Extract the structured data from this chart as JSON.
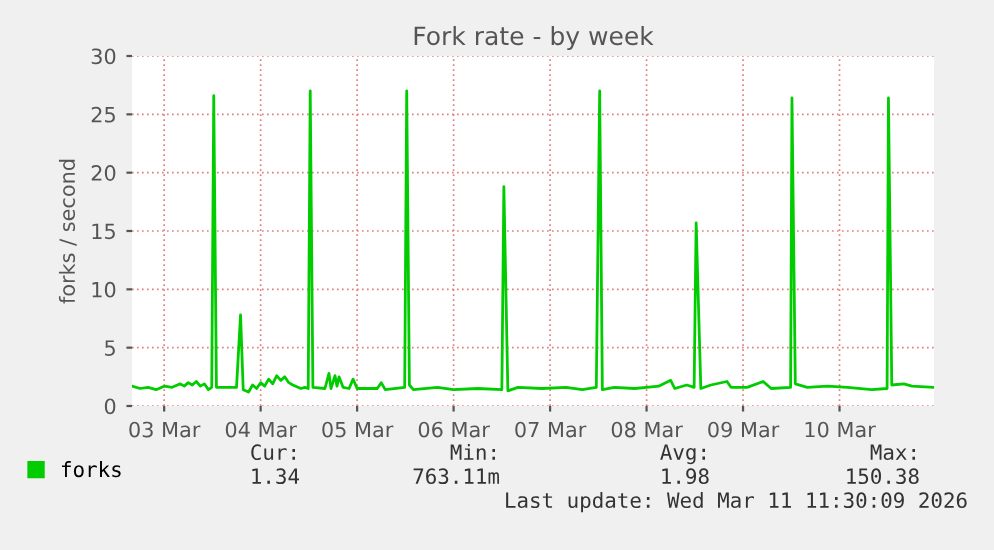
{
  "chart_data": {
    "type": "line",
    "title": "Fork rate - by week",
    "ylabel": "forks / second",
    "xlim": [
      "2026-03-03T04:00",
      "2026-03-11T11:30"
    ],
    "xticks": [
      {
        "value": "2026-03-03T12:00",
        "label": "03 Mar"
      },
      {
        "value": "2026-03-04T12:00",
        "label": "04 Mar"
      },
      {
        "value": "2026-03-05T12:00",
        "label": "05 Mar"
      },
      {
        "value": "2026-03-06T12:00",
        "label": "06 Mar"
      },
      {
        "value": "2026-03-07T12:00",
        "label": "07 Mar"
      },
      {
        "value": "2026-03-08T12:00",
        "label": "08 Mar"
      },
      {
        "value": "2026-03-09T12:00",
        "label": "09 Mar"
      },
      {
        "value": "2026-03-10T12:00",
        "label": "10 Mar"
      }
    ],
    "ylim": [
      0,
      30
    ],
    "yticks": [
      0,
      5,
      10,
      15,
      20,
      25,
      30
    ],
    "grid": true,
    "legend": "bottom",
    "x": [
      "2026-03-03T04:00",
      "2026-03-03T06:00",
      "2026-03-03T08:00",
      "2026-03-03T10:00",
      "2026-03-03T12:00",
      "2026-03-03T14:00",
      "2026-03-03T16:00",
      "2026-03-03T17:00",
      "2026-03-03T18:00",
      "2026-03-03T19:00",
      "2026-03-03T20:00",
      "2026-03-03T21:00",
      "2026-03-03T22:00",
      "2026-03-03T23:00",
      "2026-03-03T23:50",
      "2026-03-04T00:20",
      "2026-03-04T01:00",
      "2026-03-04T06:00",
      "2026-03-04T07:00",
      "2026-03-04T07:40",
      "2026-03-04T09:00",
      "2026-03-04T10:00",
      "2026-03-04T11:00",
      "2026-03-04T12:00",
      "2026-03-04T13:00",
      "2026-03-04T14:00",
      "2026-03-04T15:00",
      "2026-03-04T16:00",
      "2026-03-04T17:00",
      "2026-03-04T18:00",
      "2026-03-04T19:00",
      "2026-03-04T20:00",
      "2026-03-04T22:00",
      "2026-03-04T23:00",
      "2026-03-04T23:50",
      "2026-03-05T00:20",
      "2026-03-05T01:00",
      "2026-03-05T04:00",
      "2026-03-05T05:00",
      "2026-03-05T05:30",
      "2026-03-05T06:30",
      "2026-03-05T07:00",
      "2026-03-05T07:30",
      "2026-03-05T08:30",
      "2026-03-05T10:00",
      "2026-03-05T11:00",
      "2026-03-05T12:00",
      "2026-03-05T17:00",
      "2026-03-05T18:00",
      "2026-03-05T19:00",
      "2026-03-05T23:50",
      "2026-03-06T00:20",
      "2026-03-06T01:00",
      "2026-03-06T02:00",
      "2026-03-06T08:00",
      "2026-03-06T12:00",
      "2026-03-06T18:00",
      "2026-03-07T00:00",
      "2026-03-07T00:30",
      "2026-03-07T01:30",
      "2026-03-07T04:00",
      "2026-03-07T10:00",
      "2026-03-07T16:00",
      "2026-03-07T20:00",
      "2026-03-07T23:30",
      "2026-03-08T00:20",
      "2026-03-08T01:00",
      "2026-03-08T04:00",
      "2026-03-08T09:00",
      "2026-03-08T12:00",
      "2026-03-08T15:00",
      "2026-03-08T18:00",
      "2026-03-08T19:00",
      "2026-03-08T22:00",
      "2026-03-08T23:50",
      "2026-03-09T00:20",
      "2026-03-09T01:30",
      "2026-03-09T04:00",
      "2026-03-09T08:00",
      "2026-03-09T09:00",
      "2026-03-09T13:00",
      "2026-03-09T17:00",
      "2026-03-09T19:00",
      "2026-03-09T23:50",
      "2026-03-10T00:10",
      "2026-03-10T01:00",
      "2026-03-10T04:00",
      "2026-03-10T09:00",
      "2026-03-10T14:00",
      "2026-03-10T20:00",
      "2026-03-10T23:50",
      "2026-03-11T00:10",
      "2026-03-11T01:00",
      "2026-03-11T04:00",
      "2026-03-11T06:00",
      "2026-03-11T11:30"
    ],
    "series": [
      {
        "name": "forks",
        "color": "#00cc00",
        "values": [
          1.7,
          1.5,
          1.6,
          1.4,
          1.7,
          1.6,
          1.9,
          1.7,
          2.0,
          1.8,
          2.1,
          1.7,
          1.9,
          1.4,
          1.6,
          26.6,
          1.6,
          1.6,
          7.8,
          1.4,
          1.2,
          1.8,
          1.5,
          2.0,
          1.7,
          2.3,
          1.9,
          2.6,
          2.2,
          2.5,
          2.0,
          1.8,
          1.5,
          1.6,
          1.5,
          27.0,
          1.6,
          1.5,
          2.8,
          1.5,
          2.6,
          1.7,
          2.5,
          1.6,
          1.5,
          2.3,
          1.5,
          1.5,
          2.0,
          1.4,
          1.6,
          27.0,
          1.8,
          1.4,
          1.6,
          1.4,
          1.5,
          1.4,
          18.8,
          1.3,
          1.6,
          1.5,
          1.6,
          1.4,
          1.6,
          27.0,
          1.4,
          1.6,
          1.5,
          1.6,
          1.7,
          2.2,
          1.5,
          1.8,
          1.6,
          15.7,
          1.5,
          1.8,
          2.1,
          1.6,
          1.6,
          2.1,
          1.5,
          1.6,
          26.4,
          1.9,
          1.6,
          1.7,
          1.6,
          1.4,
          1.5,
          26.4,
          1.8,
          1.9,
          1.7,
          1.6
        ]
      }
    ],
    "annotations": [
      "Cur:",
      "Min:",
      "Avg:",
      "Max:",
      "1.34",
      "763.11m",
      "1.98",
      "150.38",
      "Last update: Wed Mar 11 11:30:09 2026"
    ]
  }
}
